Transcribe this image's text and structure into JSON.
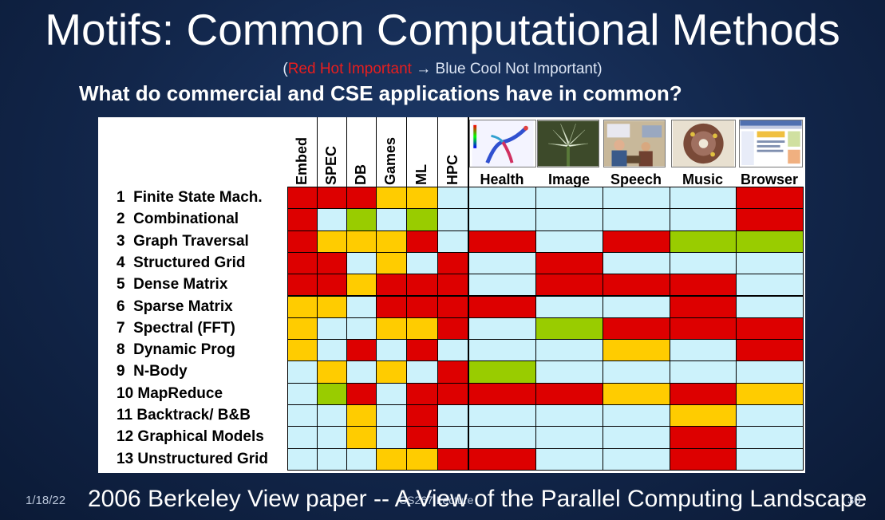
{
  "slide": {
    "title": "Motifs: Common Computational Methods",
    "subtitle_open": "(",
    "subtitle_hot": "Red Hot Important",
    "subtitle_arrow": " → ",
    "subtitle_cool": "Blue Cool Not Important",
    "subtitle_close": ")",
    "question": "What  do commercial and CSE applications have in common?"
  },
  "colors": {
    "R": "#dd0000",
    "O": "#ffcc00",
    "G": "#99cc00",
    "B": "#ccf2fb"
  },
  "table": {
    "benchmark_columns": [
      "Embed",
      "SPEC",
      "DB",
      "Games",
      "ML",
      "HPC"
    ],
    "app_columns": [
      {
        "label": "Health",
        "icon": "health-visualization-image"
      },
      {
        "label": "Image",
        "icon": "flower-image"
      },
      {
        "label": "Speech",
        "icon": "speech-meeting-image"
      },
      {
        "label": "Music",
        "icon": "music-image"
      },
      {
        "label": "Browser",
        "icon": "browser-screenshot-image"
      }
    ],
    "rows": [
      {
        "label": "1  Finite State Mach.",
        "cells": [
          "R",
          "R",
          "R",
          "O",
          "O",
          "B",
          "B",
          "B",
          "B",
          "B",
          "R"
        ]
      },
      {
        "label": "2  Combinational",
        "cells": [
          "R",
          "B",
          "G",
          "B",
          "G",
          "B",
          "B",
          "B",
          "B",
          "B",
          "R"
        ]
      },
      {
        "label": "3  Graph Traversal",
        "cells": [
          "R",
          "O",
          "O",
          "O",
          "R",
          "B",
          "R",
          "B",
          "R",
          "G",
          "G"
        ]
      },
      {
        "label": "4  Structured Grid",
        "cells": [
          "R",
          "R",
          "B",
          "O",
          "B",
          "R",
          "B",
          "R",
          "B",
          "B",
          "B"
        ]
      },
      {
        "label": "5  Dense Matrix",
        "cells": [
          "R",
          "R",
          "O",
          "R",
          "R",
          "R",
          "B",
          "R",
          "R",
          "R",
          "B"
        ]
      },
      {
        "label": "6  Sparse Matrix",
        "cells": [
          "O",
          "O",
          "B",
          "R",
          "R",
          "R",
          "R",
          "B",
          "B",
          "R",
          "B"
        ]
      },
      {
        "label": "7  Spectral (FFT)",
        "cells": [
          "O",
          "B",
          "B",
          "O",
          "O",
          "R",
          "B",
          "G",
          "R",
          "R",
          "R"
        ]
      },
      {
        "label": "8  Dynamic Prog",
        "cells": [
          "O",
          "B",
          "R",
          "B",
          "R",
          "B",
          "B",
          "B",
          "O",
          "B",
          "R"
        ]
      },
      {
        "label": "9  N-Body",
        "cells": [
          "B",
          "O",
          "B",
          "O",
          "B",
          "R",
          "G",
          "B",
          "B",
          "B",
          "B"
        ]
      },
      {
        "label": "10 MapReduce",
        "cells": [
          "B",
          "G",
          "R",
          "B",
          "R",
          "R",
          "R",
          "R",
          "O",
          "R",
          "O"
        ]
      },
      {
        "label": "11 Backtrack/ B&B",
        "cells": [
          "B",
          "B",
          "O",
          "B",
          "R",
          "B",
          "B",
          "B",
          "B",
          "O",
          "B"
        ]
      },
      {
        "label": "12 Graphical Models",
        "cells": [
          "B",
          "B",
          "O",
          "B",
          "R",
          "B",
          "B",
          "B",
          "B",
          "R",
          "B"
        ]
      },
      {
        "label": "13 Unstructured Grid",
        "cells": [
          "B",
          "B",
          "B",
          "O",
          "O",
          "R",
          "R",
          "B",
          "B",
          "R",
          "B"
        ]
      }
    ]
  },
  "footer": {
    "date": "1/18/22",
    "reference": "2006 Berkeley View paper -- A View of the Parallel Computing Landscape",
    "course": "CS267 Lecture",
    "page": "30"
  }
}
